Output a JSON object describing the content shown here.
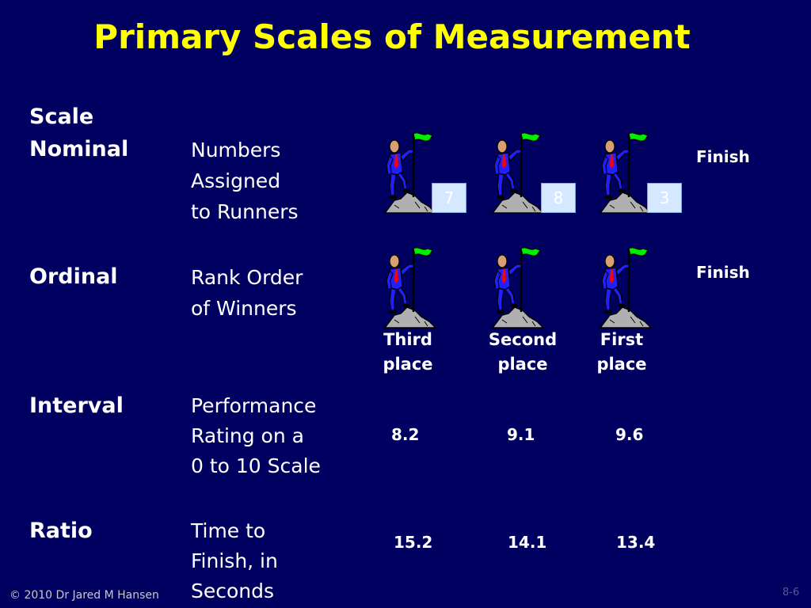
{
  "title": "Primary Scales of Measurement",
  "scale_heading": "Scale",
  "rows": [
    {
      "name": "Nominal",
      "desc": [
        "Numbers",
        "Assigned",
        "to Runners"
      ],
      "finish": "Finish",
      "numbers": [
        "7",
        "8",
        "3"
      ]
    },
    {
      "name": "Ordinal",
      "desc": [
        "Rank Order",
        "of Winners"
      ],
      "finish": "Finish",
      "places": [
        [
          "Third",
          "place"
        ],
        [
          "Second",
          "place"
        ],
        [
          "First",
          "place"
        ]
      ]
    },
    {
      "name": "Interval",
      "desc": [
        "Performance",
        "Rating on a",
        "0 to 10 Scale"
      ],
      "values": [
        "8.2",
        "9.1",
        "9.6"
      ]
    },
    {
      "name": "Ratio",
      "desc": [
        "Time to",
        "Finish, in",
        "Seconds"
      ],
      "values": [
        "15.2",
        "14.1",
        "13.4"
      ]
    }
  ],
  "footer": "© 2010 Dr Jared M Hansen",
  "page_number": "8-6",
  "colors": {
    "background": "#000060",
    "title": "#ffff00",
    "flag": "#00ee00",
    "runner_suit": "#2020ff",
    "tie": "#ff0000",
    "rock": "#b0b0b0"
  },
  "icons": [
    "runner-on-rock-with-flag-icon"
  ]
}
